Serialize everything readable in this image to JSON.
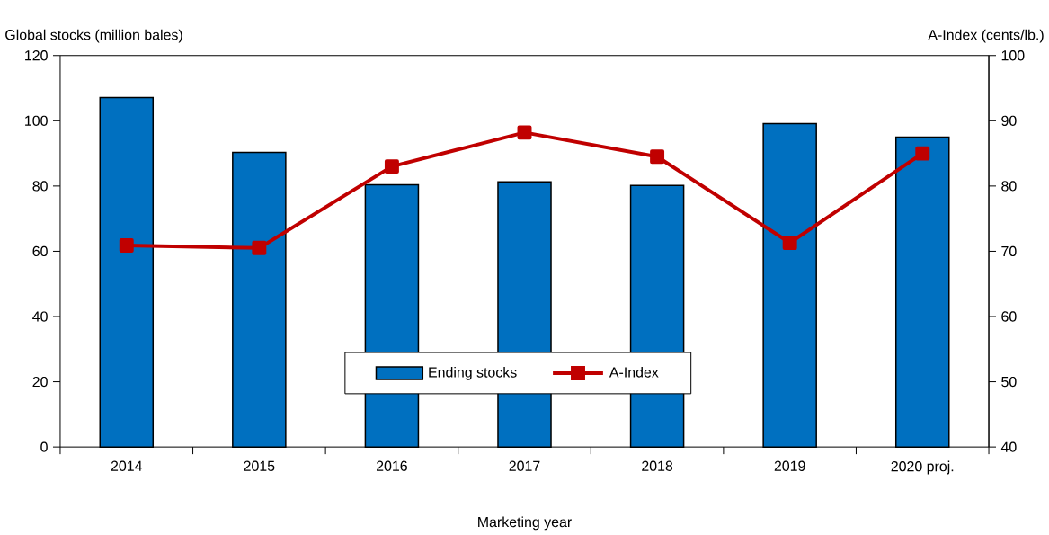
{
  "chart_data": {
    "type": "bar",
    "xlabel": "Marketing year",
    "ylabel": "Global stocks (million bales)",
    "y2label": "A-Index (cents/lb.)",
    "categories": [
      "2014",
      "2015",
      "2016",
      "2017",
      "2018",
      "2019",
      "2020 proj."
    ],
    "series": [
      {
        "name": "Ending stocks",
        "color": "#0070c0",
        "values": [
          107.1,
          90.3,
          80.4,
          81.3,
          80.2,
          99.1,
          95.0
        ]
      },
      {
        "name": "A-Index",
        "type": "line",
        "axis": "y2",
        "color": "#c00000",
        "values": [
          70.9,
          70.5,
          83.0,
          88.2,
          84.5,
          71.3,
          85.0
        ]
      }
    ],
    "ylim": [
      0,
      120
    ],
    "yticks": [
      0,
      20,
      40,
      60,
      80,
      100,
      120
    ],
    "y2lim": [
      40,
      100
    ],
    "y2ticks": [
      40,
      50,
      60,
      70,
      80,
      90,
      100
    ],
    "marker": "square",
    "line_style": "solid",
    "legend": "bottom",
    "grid": false
  }
}
